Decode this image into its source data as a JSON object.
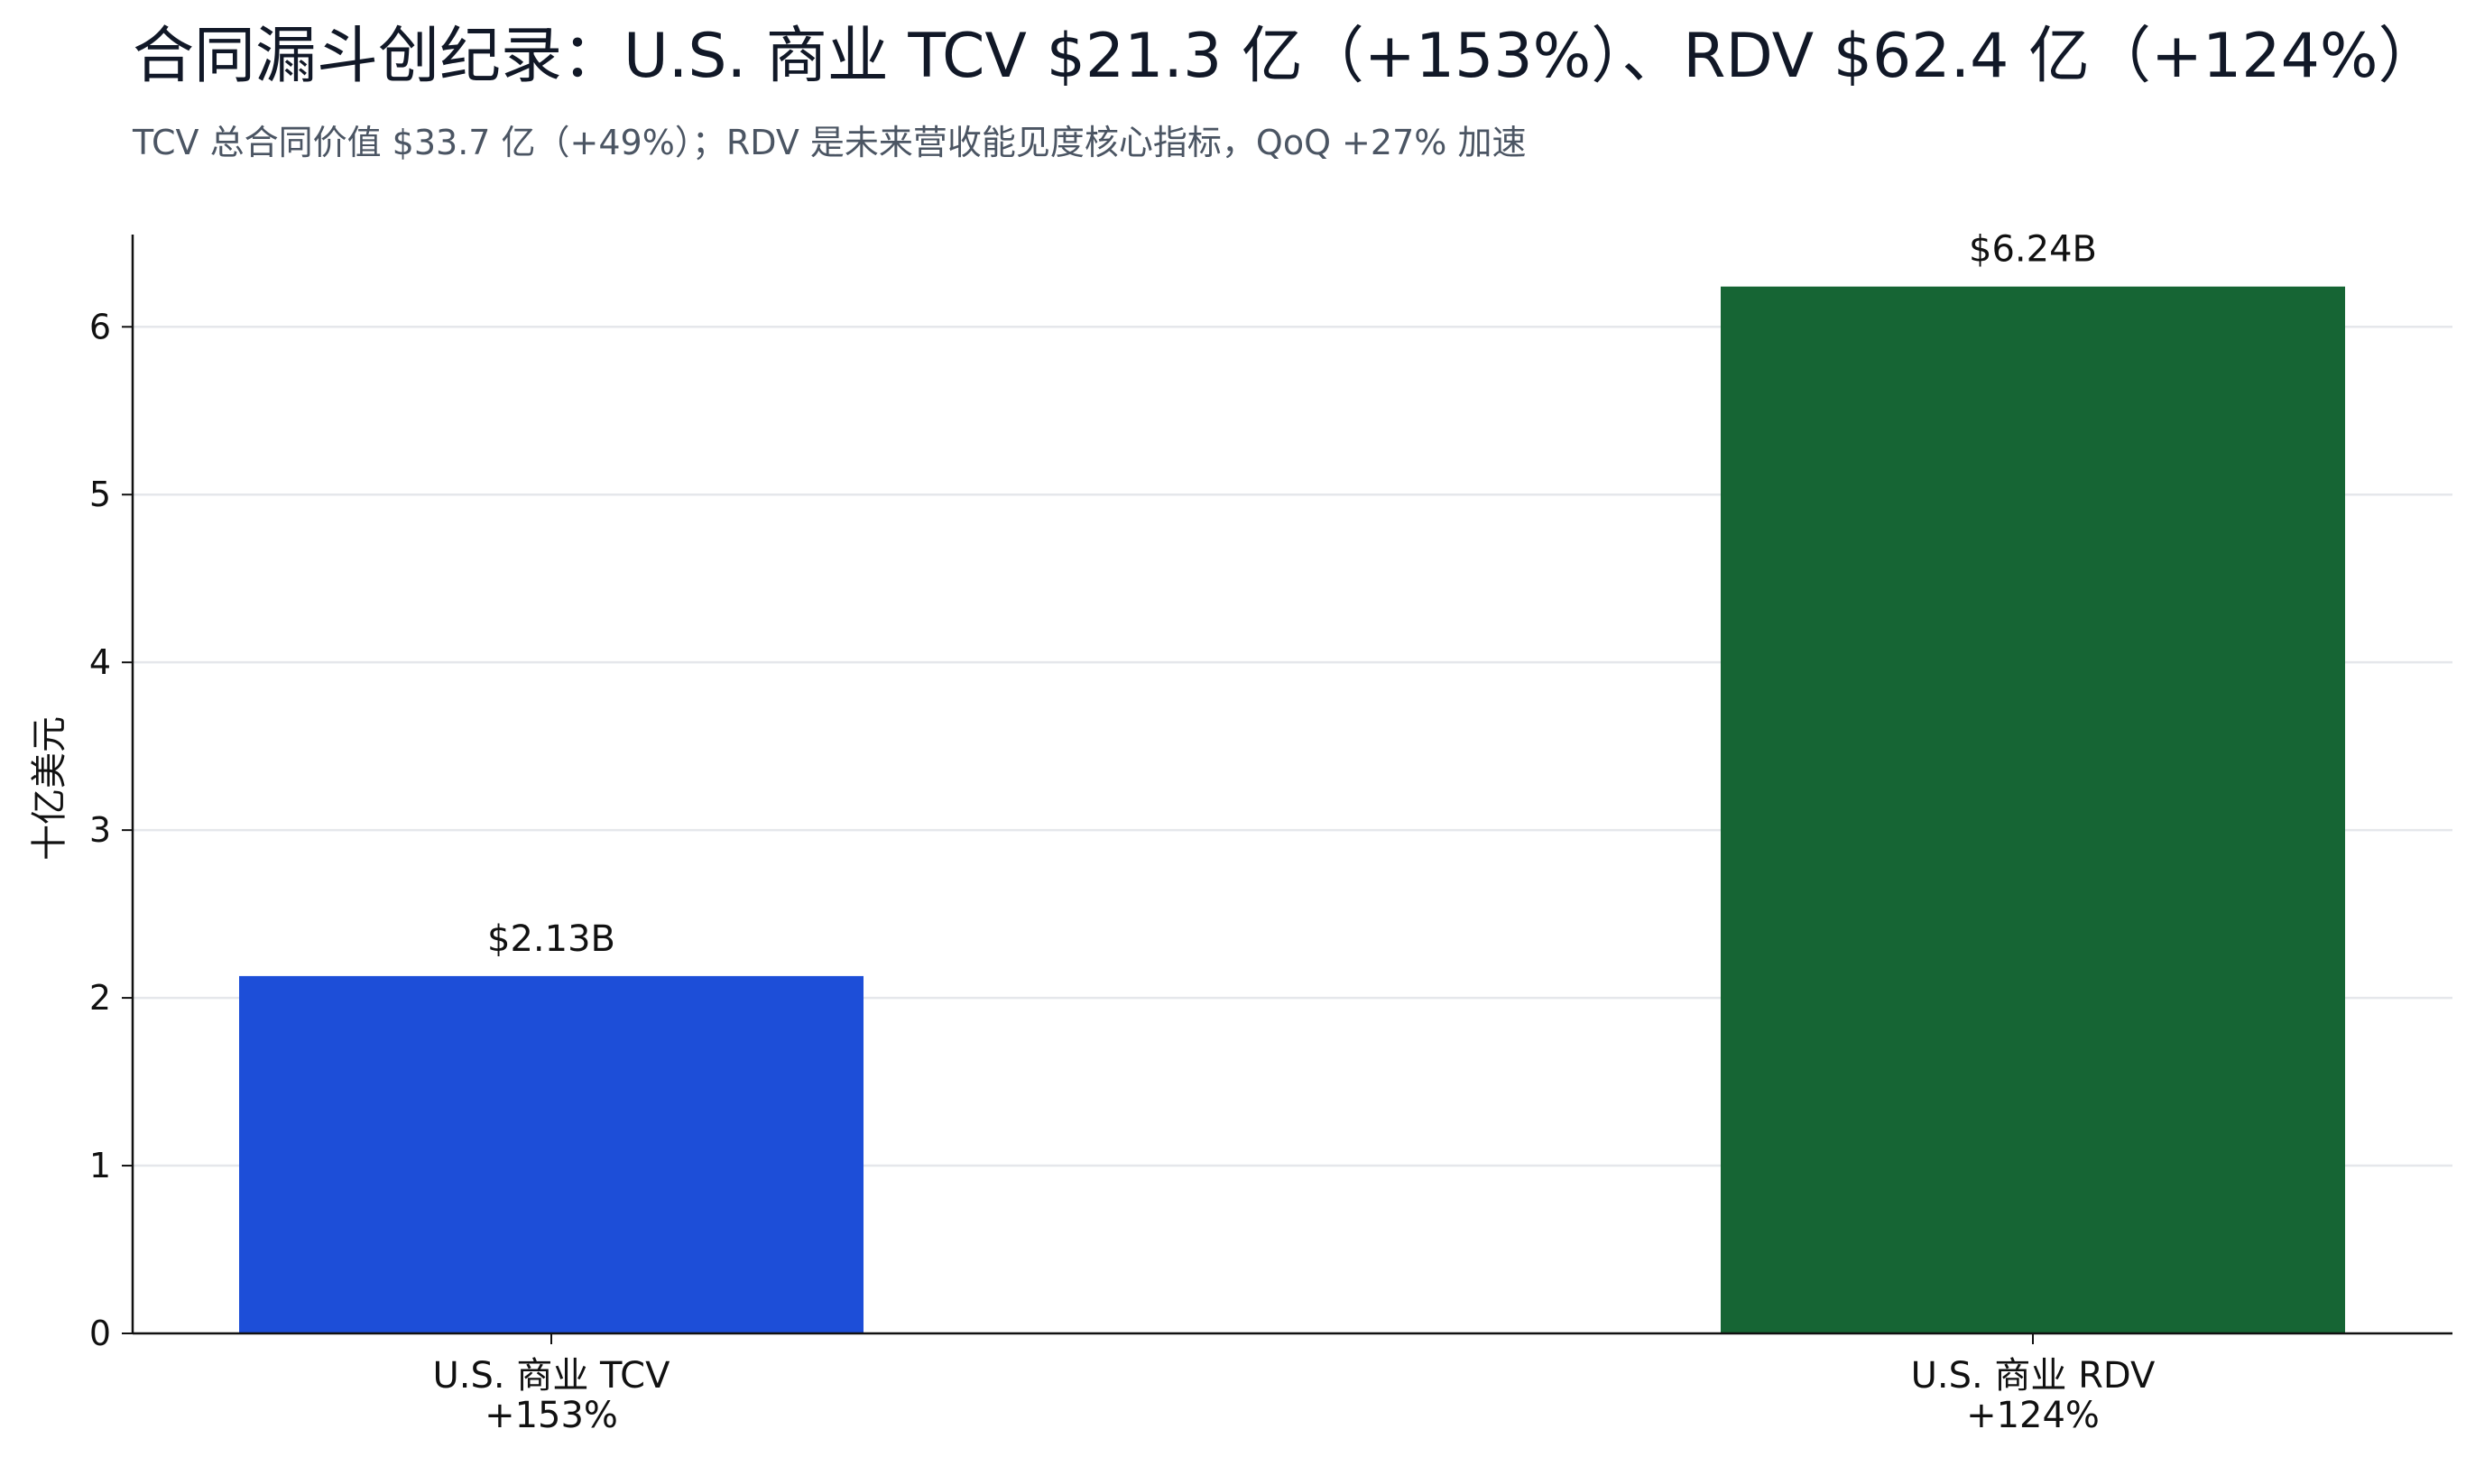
{
  "chart_data": {
    "type": "bar",
    "title": "合同漏斗创纪录：U.S. 商业 TCV $21.3 亿（+153%）、RDV $62.4 亿（+124%）",
    "subtitle": "TCV 总合同价值 $33.7 亿（+49%）；RDV 是未来营收能见度核心指标，QoQ +27% 加速",
    "xlabel": "",
    "ylabel": "十亿美元",
    "categories": [
      [
        "U.S. 商业 TCV",
        "+153%"
      ],
      [
        "U.S. 商业 RDV",
        "+124%"
      ]
    ],
    "values": [
      2.13,
      6.24
    ],
    "data_labels": [
      "$2.13B",
      "$6.24B"
    ],
    "colors": [
      "#1d4ed8",
      "#166534"
    ],
    "ylim": [
      0,
      6.55
    ],
    "yticks": [
      0,
      1,
      2,
      3,
      4,
      5,
      6
    ],
    "grid": true,
    "legend": "none"
  }
}
